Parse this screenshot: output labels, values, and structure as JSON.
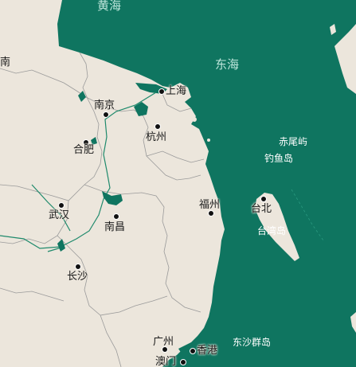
{
  "seas": {
    "yellow_sea": "黄海",
    "east_sea": "东海"
  },
  "cities": [
    {
      "id": "shanghai",
      "name": "上海"
    },
    {
      "id": "nanjing",
      "name": "南京"
    },
    {
      "id": "hefei",
      "name": "合肥"
    },
    {
      "id": "hangzhou",
      "name": "杭州"
    },
    {
      "id": "wuhan",
      "name": "武汉"
    },
    {
      "id": "nanchang",
      "name": "南昌"
    },
    {
      "id": "changsha",
      "name": "长沙"
    },
    {
      "id": "fuzhou",
      "name": "福州"
    },
    {
      "id": "taipei",
      "name": "台北"
    },
    {
      "id": "guangzhou",
      "name": "广州"
    },
    {
      "id": "hongkong",
      "name": "香港"
    },
    {
      "id": "macau",
      "name": "澳门"
    }
  ],
  "islands": {
    "chiwei": "赤尾屿",
    "diaoyu": "钓鱼岛",
    "taiwan": "台湾岛",
    "dongsha": "东沙群岛"
  },
  "edge_label": "南",
  "colors": {
    "sea": "#0f7560",
    "land": "#ece6dc",
    "border": "#9a9a9a",
    "river": "#1f8a6c"
  }
}
